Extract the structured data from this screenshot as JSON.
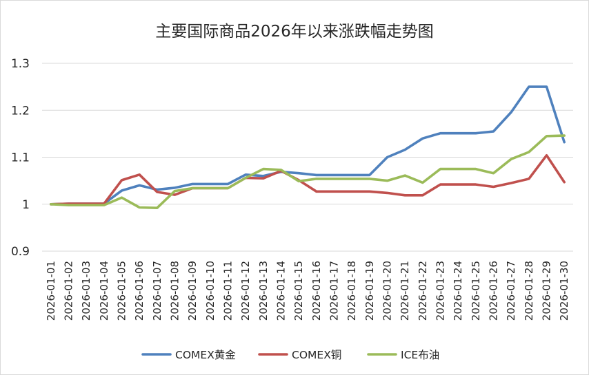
{
  "chart_data": {
    "type": "line",
    "title": "主要国际商品2026年以来涨跌幅走势图",
    "xlabel": "",
    "ylabel": "",
    "ylim": [
      0.9,
      1.3
    ],
    "yticks": [
      "0.9",
      "1",
      "1.1",
      "1.2",
      "1.3"
    ],
    "ytick_values": [
      0.9,
      1.0,
      1.1,
      1.2,
      1.3
    ],
    "grid": true,
    "legend_position": "bottom",
    "categories": [
      "2026-01-01",
      "2026-01-02",
      "2026-01-03",
      "2026-01-04",
      "2026-01-05",
      "2026-01-06",
      "2026-01-07",
      "2026-01-08",
      "2026-01-09",
      "2026-01-10",
      "2026-01-11",
      "2026-01-12",
      "2026-01-13",
      "2026-01-14",
      "2026-01-15",
      "2026-01-16",
      "2026-01-17",
      "2026-01-18",
      "2026-01-19",
      "2026-01-20",
      "2026-01-21",
      "2026-01-22",
      "2026-01-23",
      "2026-01-24",
      "2026-01-25",
      "2026-01-26",
      "2026-01-27",
      "2026-01-28",
      "2026-01-29",
      "2026-01-30"
    ],
    "series": [
      {
        "name": "COMEX黄金",
        "color": "#4F81BD",
        "values": [
          1.0,
          1.001,
          1.001,
          1.001,
          1.029,
          1.04,
          1.031,
          1.035,
          1.043,
          1.043,
          1.043,
          1.063,
          1.06,
          1.069,
          1.066,
          1.062,
          1.062,
          1.062,
          1.062,
          1.1,
          1.116,
          1.14,
          1.151,
          1.151,
          1.151,
          1.155,
          1.196,
          1.25,
          1.25,
          1.132
        ]
      },
      {
        "name": "COMEX铜",
        "color": "#C0504D",
        "values": [
          1.0,
          1.001,
          1.001,
          1.001,
          1.051,
          1.063,
          1.026,
          1.02,
          1.034,
          1.034,
          1.034,
          1.056,
          1.055,
          1.071,
          1.051,
          1.027,
          1.027,
          1.027,
          1.027,
          1.024,
          1.019,
          1.019,
          1.042,
          1.042,
          1.042,
          1.037,
          1.045,
          1.054,
          1.104,
          1.047
        ]
      },
      {
        "name": "ICE布油",
        "color": "#9BBB59",
        "values": [
          1.0,
          0.998,
          0.998,
          0.998,
          1.014,
          0.993,
          0.992,
          1.028,
          1.034,
          1.034,
          1.034,
          1.056,
          1.075,
          1.073,
          1.049,
          1.054,
          1.054,
          1.054,
          1.054,
          1.05,
          1.061,
          1.046,
          1.075,
          1.075,
          1.075,
          1.066,
          1.096,
          1.111,
          1.145,
          1.146
        ]
      }
    ]
  }
}
